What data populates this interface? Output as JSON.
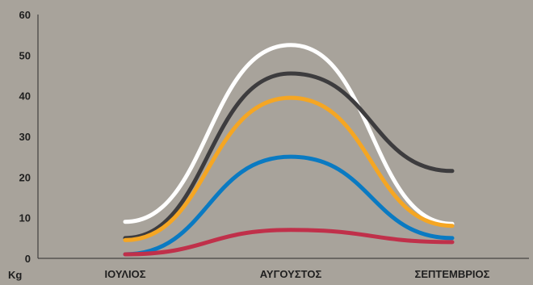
{
  "chart_data": {
    "type": "line",
    "title": "",
    "xlabel": "",
    "ylabel": "Kg",
    "categories": [
      "ΙΟΥΛΙΟΣ",
      "ΑΥΓΟΥΣΤΟΣ",
      "ΣΕΠΤΕΜΒΡΙΟΣ"
    ],
    "ylim": [
      0,
      60
    ],
    "yticks": [
      0,
      10,
      20,
      30,
      40,
      50,
      60
    ],
    "grid": false,
    "legend": "none",
    "smooth": true,
    "series": [
      {
        "color": "#ffffff",
        "values": [
          9,
          52.5,
          8.5
        ]
      },
      {
        "color": "#3d3c3e",
        "values": [
          5,
          45.5,
          21.5
        ]
      },
      {
        "color": "#f5a623",
        "values": [
          4.5,
          39.5,
          8
        ]
      },
      {
        "color": "#0a7ac2",
        "values": [
          1,
          25,
          5
        ]
      },
      {
        "color": "#c0304a",
        "values": [
          1,
          7,
          4
        ]
      }
    ],
    "colors": {
      "background": "#a8a39b",
      "axis": "#2b2b2b",
      "text": "#1f1f1f"
    }
  }
}
